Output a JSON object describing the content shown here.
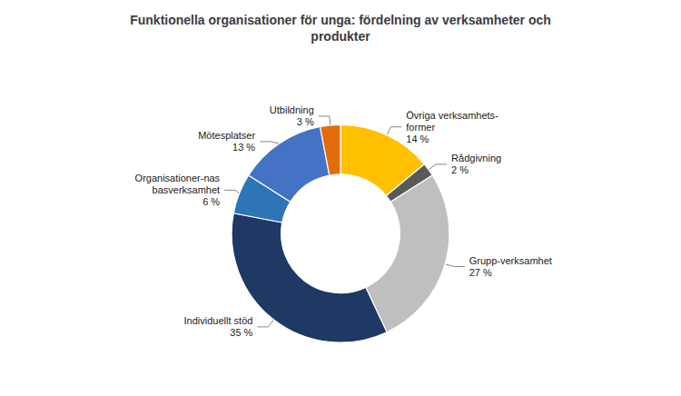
{
  "chart_data": {
    "type": "donut",
    "title": "Funktionella organisationer för unga: fördelning av verksamheter och\nprodukter",
    "categories": [
      "Övriga verksamhets-\nformer",
      "Rådgivning",
      "Grupp-verksamhet",
      "Individuellt stöd",
      "Organisationer-nas\nbasverksamhet",
      "Mötesplatser",
      "Utbildning"
    ],
    "values": [
      14,
      2,
      27,
      35,
      6,
      13,
      3
    ],
    "value_labels": [
      "14 %",
      "2 %",
      "27 %",
      "35 %",
      "6 %",
      "13 %",
      "3 %"
    ],
    "colors": [
      "#FFC000",
      "#595959",
      "#BFBFBF",
      "#1F3864",
      "#2E75B6",
      "#4472C4",
      "#E36C09"
    ],
    "data_labels": true
  }
}
